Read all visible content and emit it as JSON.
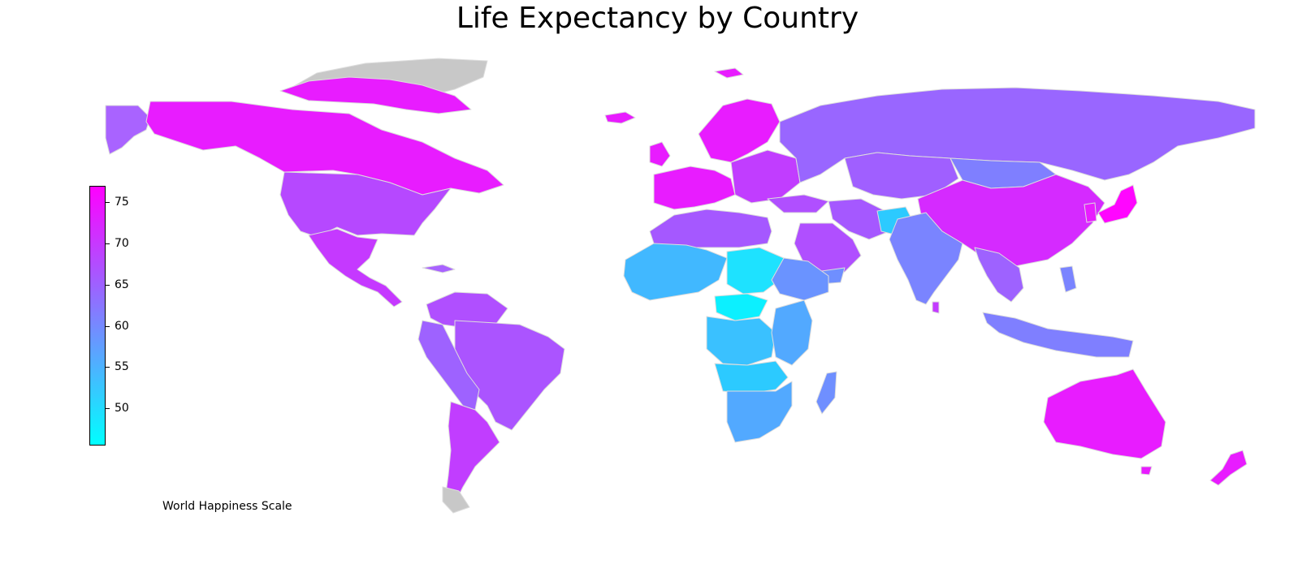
{
  "title": "Life Expectancy by Country",
  "scale_label": "World Happiness Scale",
  "colorbar": {
    "min": 45,
    "max": 77,
    "ticks": [
      "75",
      "70",
      "65",
      "60",
      "55",
      "50"
    ],
    "tick_values": [
      75,
      70,
      65,
      60,
      55,
      50
    ],
    "color_low": "#00ffff",
    "color_high": "#ff00ff",
    "colormap": "cool"
  },
  "colors": {
    "no_data": "#c8c8c8",
    "border": "#dddddd"
  }
}
